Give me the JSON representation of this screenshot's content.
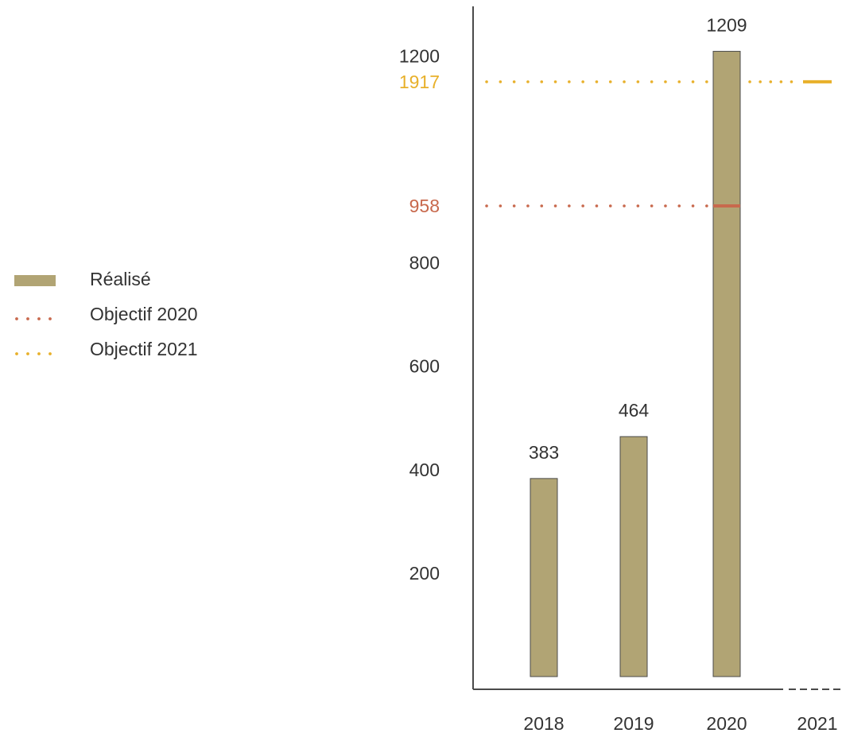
{
  "chart_data": {
    "type": "bar",
    "categories": [
      "2018",
      "2019",
      "2020",
      "2021"
    ],
    "series": [
      {
        "name": "Réalisé",
        "values": [
          383,
          464,
          1209,
          null
        ],
        "data_labels": [
          "383",
          "464",
          "1209",
          ""
        ]
      }
    ],
    "y_ticks": [
      200,
      400,
      600,
      800,
      1200
    ],
    "y_tick_labels": [
      "200",
      "400",
      "600",
      "800",
      "1200"
    ],
    "ylim": [
      0,
      1250
    ],
    "targets": [
      {
        "name": "Objectif 2020",
        "label": "958",
        "plot_value": 910,
        "color": "#c8694d"
      },
      {
        "name": "Objectif 2021",
        "label": "1917",
        "plot_value": 1150,
        "color": "#e8b02a"
      }
    ],
    "legend": {
      "position": "left",
      "items": [
        {
          "label": "Réalisé",
          "kind": "bar",
          "color": "#b1a474"
        },
        {
          "label": "Objectif 2020",
          "kind": "dots",
          "color": "#c8694d"
        },
        {
          "label": "Objectif 2021",
          "kind": "dots",
          "color": "#e8b02a"
        }
      ]
    },
    "colors": {
      "bar_fill": "#b1a474",
      "bar_stroke": "#4a4a4a",
      "axis": "#4a4a4a",
      "text": "#333333"
    },
    "grid": false
  }
}
